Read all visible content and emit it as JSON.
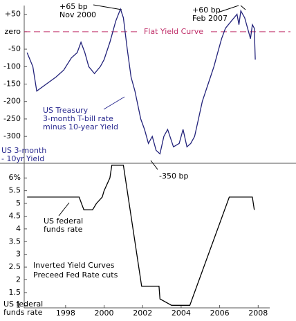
{
  "chart_data": [
    {
      "type": "line",
      "ylabel": [
        "US 3-month",
        "- 10yr Yield"
      ],
      "xlim": [
        1995.85,
        2008.6
      ],
      "ylim": [
        -375,
        75
      ],
      "yticks": [
        {
          "value": 50,
          "label": "+50"
        },
        {
          "value": 0,
          "label": "zero"
        },
        -50,
        -100,
        -150,
        -200,
        -250,
        -300
      ],
      "reference_line": {
        "value": 0,
        "label": "Flat Yield Curve",
        "color": "#c0306a"
      },
      "color": "#22227a",
      "x": [
        1996.0,
        1996.3,
        1996.5,
        1997.0,
        1997.5,
        1997.9,
        1998.3,
        1998.6,
        1998.8,
        1999.0,
        1999.2,
        1999.5,
        1999.8,
        2000.0,
        2000.3,
        2000.6,
        2000.85,
        2001.0,
        2001.2,
        2001.4,
        2001.6,
        2001.9,
        2002.1,
        2002.3,
        2002.5,
        2002.7,
        2002.9,
        2003.1,
        2003.3,
        2003.6,
        2003.9,
        2004.1,
        2004.3,
        2004.5,
        2004.7,
        2004.9,
        2005.1,
        2005.4,
        2005.7,
        2005.9,
        2006.1,
        2006.3,
        2006.6,
        2006.9,
        2007.0,
        2007.1,
        2007.3,
        2007.5,
        2007.6,
        2007.7,
        2007.8,
        2007.85
      ],
      "values": [
        -60,
        -100,
        -170,
        -150,
        -130,
        -110,
        -75,
        -60,
        -30,
        -60,
        -100,
        -120,
        -100,
        -80,
        -30,
        30,
        65,
        40,
        -50,
        -130,
        -170,
        -250,
        -280,
        -320,
        -300,
        -340,
        -350,
        -300,
        -280,
        -330,
        -320,
        -280,
        -330,
        -320,
        -300,
        -250,
        -200,
        -150,
        -100,
        -60,
        -20,
        10,
        30,
        50,
        20,
        60,
        40,
        0,
        -20,
        20,
        10,
        -80
      ],
      "annotations": [
        {
          "text": [
            "+65 bp",
            "Nov 2000"
          ],
          "color": "#000000"
        },
        {
          "text": [
            "+60 bp",
            "Feb 2007"
          ],
          "color": "#000000"
        },
        {
          "text": [
            "US Treasury",
            "3-month T-bill rate",
            "minus 10-year Yield"
          ],
          "color": "#2a2a90"
        },
        {
          "text": [
            "-350 bp"
          ],
          "color": "#000000"
        }
      ]
    },
    {
      "type": "line",
      "ylabel": [
        "US federal",
        "funds rate"
      ],
      "xlim": [
        1995.85,
        2008.6
      ],
      "ylim": [
        0.9,
        6.55
      ],
      "yticks": [
        {
          "value": 6,
          "label": "6%"
        },
        5.5,
        5,
        4.5,
        4,
        3.5,
        3,
        2.5,
        2,
        1.5,
        1
      ],
      "xticks": [
        1998,
        2000,
        2002,
        2004,
        2006,
        2008
      ],
      "color": "#000000",
      "x": [
        1996.0,
        1998.7,
        1998.95,
        1999.4,
        1999.6,
        1999.9,
        2000.0,
        2000.3,
        2000.4,
        2001.0,
        2001.95,
        2002.85,
        2002.9,
        2003.5,
        2004.45,
        2006.5,
        2007.7,
        2007.8
      ],
      "values": [
        5.25,
        5.25,
        4.75,
        4.75,
        5.0,
        5.25,
        5.5,
        6.0,
        6.5,
        6.5,
        1.75,
        1.75,
        1.25,
        1.0,
        1.0,
        5.25,
        5.25,
        4.75
      ],
      "annotations": [
        {
          "text": [
            "US federal",
            "funds rate"
          ],
          "color": "#000000"
        },
        {
          "text": [
            "Inverted Yield Curves",
            "Preceed Fed Rate cuts"
          ],
          "color": "#000000"
        }
      ]
    }
  ]
}
